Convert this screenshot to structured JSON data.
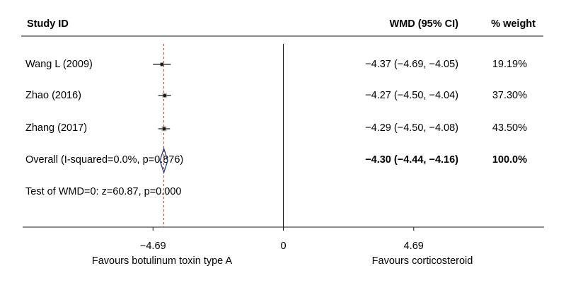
{
  "headers": {
    "study": "Study ID",
    "effect": "WMD (95% CI)",
    "weight": "% weight"
  },
  "chart_data": {
    "type": "forest",
    "xlim": [
      -9.38,
      9.38
    ],
    "x_ticks": [
      {
        "value": -4.69,
        "label": "−4.69"
      },
      {
        "value": 0,
        "label": "0"
      },
      {
        "value": 4.69,
        "label": "4.69"
      }
    ],
    "reference_line": 0,
    "overall_line": -4.3,
    "favours_left": "Favours botulinum toxin type A",
    "favours_right": "Favours corticosteroid",
    "studies": [
      {
        "label": "Wang L (2009)",
        "estimate": -4.37,
        "ci_low": -4.69,
        "ci_high": -4.05,
        "effect_text": "−4.37 (−4.69, −4.05)",
        "weight": 19.19,
        "weight_text": "19.19%"
      },
      {
        "label": "Zhao (2016)",
        "estimate": -4.27,
        "ci_low": -4.5,
        "ci_high": -4.04,
        "effect_text": "−4.27 (−4.50, −4.04)",
        "weight": 37.3,
        "weight_text": "37.30%"
      },
      {
        "label": "Zhang (2017)",
        "estimate": -4.29,
        "ci_low": -4.5,
        "ci_high": -4.08,
        "effect_text": "−4.29 (−4.50, −4.08)",
        "weight": 43.5,
        "weight_text": "43.50%"
      }
    ],
    "overall": {
      "label": "Overall (I-squared=0.0%, p=0.876)",
      "estimate": -4.3,
      "ci_low": -4.44,
      "ci_high": -4.16,
      "effect_text": "−4.30 (−4.44, −4.16)",
      "weight_text": "100.0%"
    },
    "test_text": "Test of WMD=0: z=60.87, p=0.000",
    "colors": {
      "diamond": "#2c3e7a",
      "overall_line": "#c0392b",
      "text": "#1a1a1a",
      "axis": "#1a1a1a"
    }
  }
}
